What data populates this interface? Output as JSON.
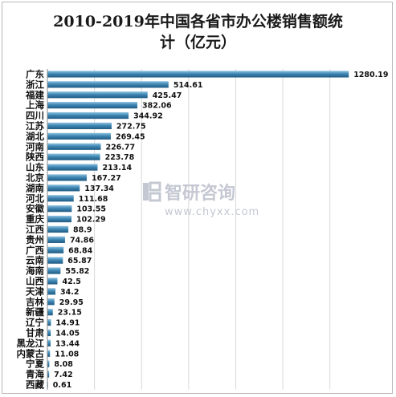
{
  "chart_data": {
    "type": "bar",
    "orientation": "horizontal",
    "title_lines": [
      "2010-2019年中国各省市办公楼销售额统",
      "计（亿元）"
    ],
    "xlabel": "",
    "ylabel": "",
    "xlim": [
      0,
      1300
    ],
    "grid": true,
    "legend": "none",
    "categories": [
      "广东",
      "浙江",
      "福建",
      "上海",
      "四川",
      "江苏",
      "湖北",
      "河南",
      "陕西",
      "山东",
      "北京",
      "湖南",
      "河北",
      "安徽",
      "重庆",
      "江西",
      "贵州",
      "广西",
      "云南",
      "海南",
      "山西",
      "天津",
      "吉林",
      "新疆",
      "辽宁",
      "甘肃",
      "黑龙江",
      "内蒙古",
      "宁夏",
      "青海",
      "西藏"
    ],
    "values": [
      1280.19,
      514.61,
      425.47,
      382.06,
      344.92,
      272.75,
      269.45,
      226.77,
      223.78,
      213.14,
      167.27,
      137.34,
      111.68,
      103.55,
      102.29,
      88.9,
      74.86,
      68.84,
      65.87,
      55.82,
      42.5,
      34.2,
      29.95,
      23.15,
      14.91,
      14.05,
      13.44,
      11.08,
      8.08,
      7.42,
      0.61
    ],
    "value_labels": [
      "1280.19",
      "514.61",
      "425.47",
      "382.06",
      "344.92",
      "272.75",
      "269.45",
      "226.77",
      "223.78",
      "213.14",
      "167.27",
      "137.34",
      "111.68",
      "103.55",
      "102.29",
      "88.9",
      "74.86",
      "68.84",
      "65.87",
      "55.82",
      "42.5",
      "34.2",
      "29.95",
      "23.15",
      "14.91",
      "14.05",
      "13.44",
      "11.08",
      "8.08",
      "7.42",
      "0.61"
    ],
    "bar_color": "#3a7ca5"
  },
  "watermark": {
    "logo_text": "智研咨询",
    "url": "www.chyxx.com"
  }
}
